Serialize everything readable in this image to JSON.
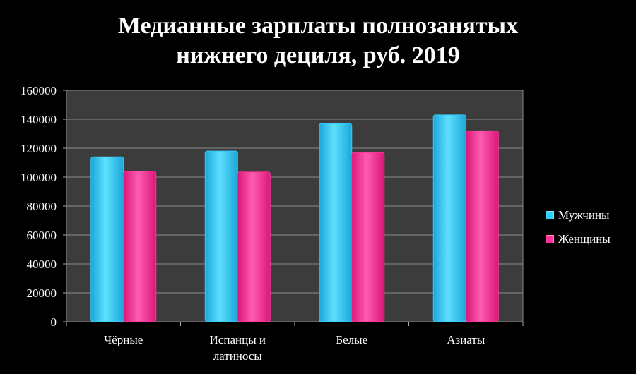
{
  "chart_data": {
    "type": "bar",
    "title_line1": "Медианные зарплаты полнозанятых",
    "title_line2": "нижнего дециля, руб. 2019",
    "categories": [
      "Чёрные",
      [
        "Испанцы и",
        "латиносы"
      ],
      "Белые",
      "Азиаты"
    ],
    "series": [
      {
        "name": "Мужчины",
        "color": "#33ccff",
        "values": [
          114000,
          118000,
          137000,
          143000
        ]
      },
      {
        "name": "Женщины",
        "color": "#ff3399",
        "values": [
          104000,
          103500,
          117000,
          132000
        ]
      }
    ],
    "ylim": [
      0,
      160000
    ],
    "yticks": [
      "0",
      "20000",
      "40000",
      "60000",
      "80000",
      "100000",
      "120000",
      "140000",
      "160000"
    ],
    "legend": "right"
  }
}
